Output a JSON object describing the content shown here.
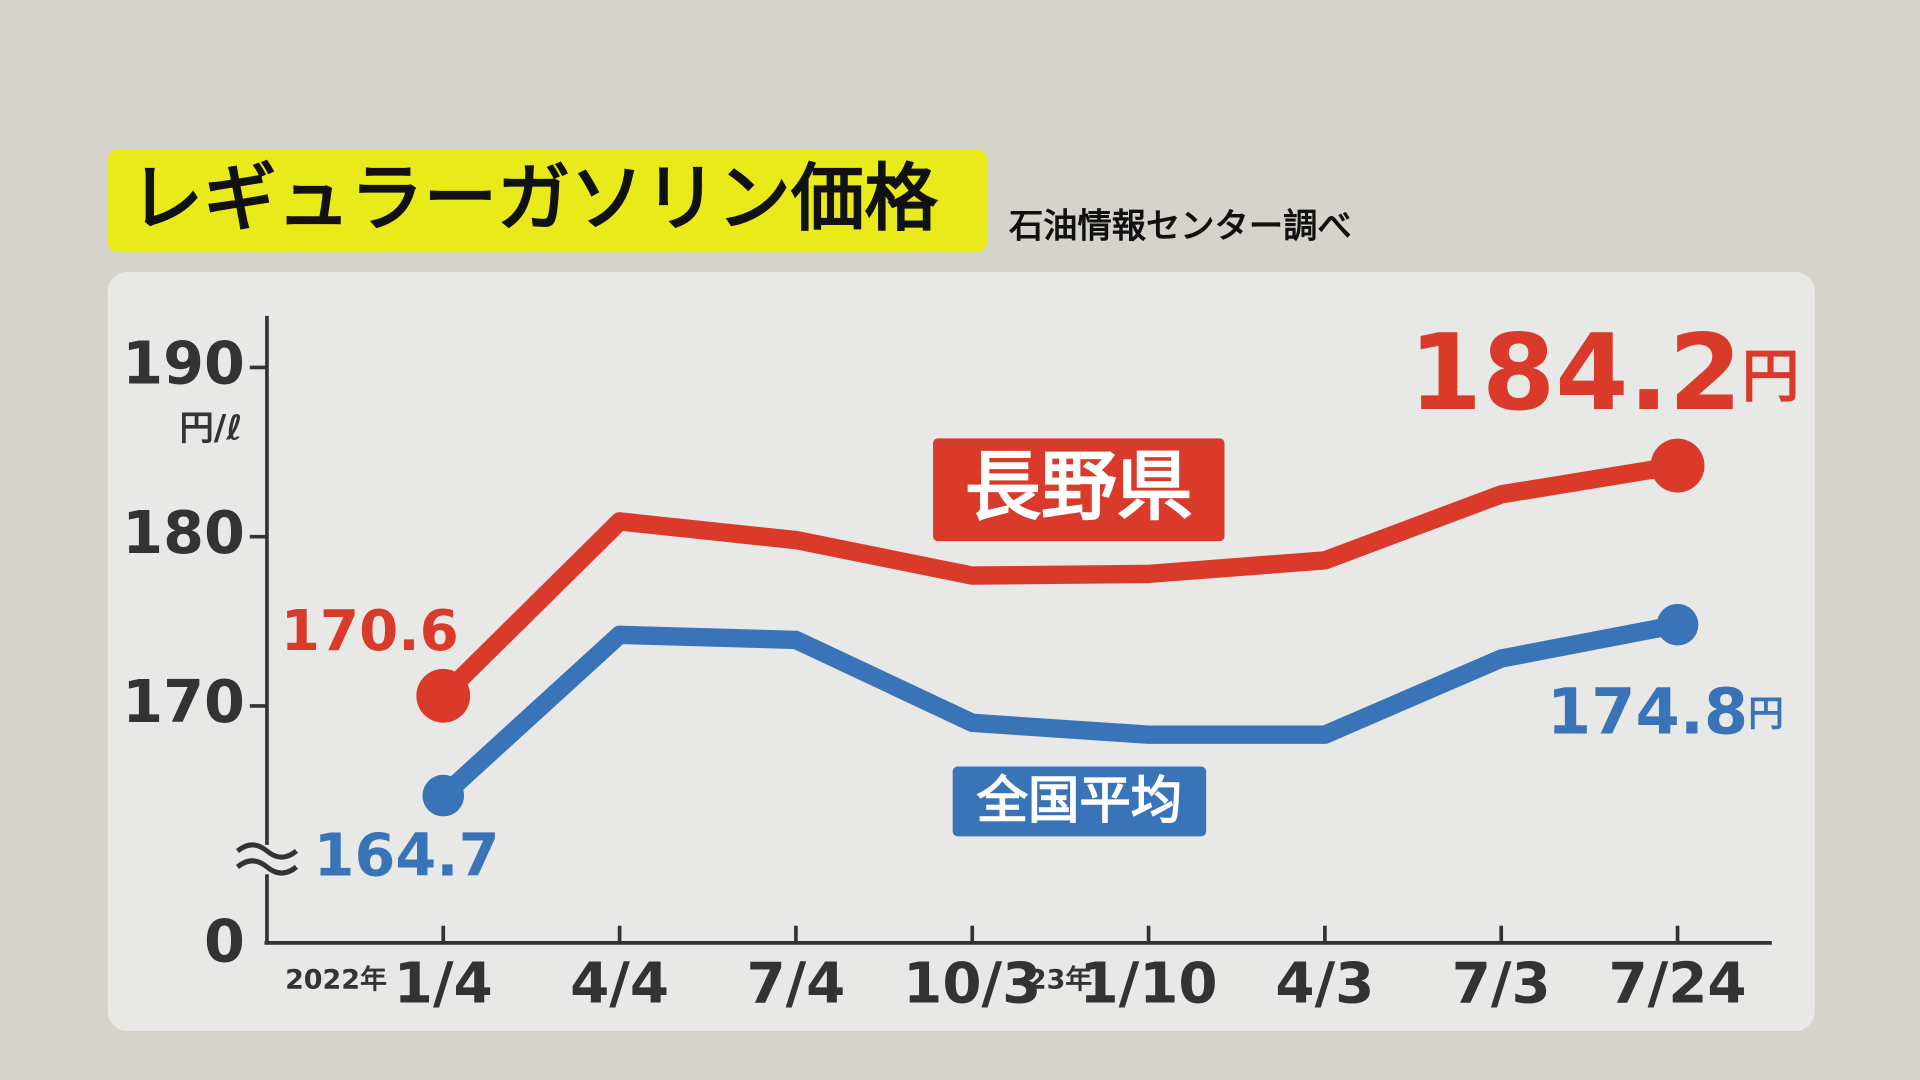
{
  "chart_data": {
    "type": "line",
    "title": "レギュラーガソリン価格",
    "subtitle": "石油情報センター調べ",
    "y_unit_label": "円/ℓ",
    "y_break_label": "0",
    "categories": [
      "1/4",
      "4/4",
      "7/4",
      "10/3",
      "1/10",
      "4/3",
      "7/3",
      "7/24"
    ],
    "year_labels": [
      "2022年",
      null,
      null,
      null,
      "23年",
      null,
      null,
      null
    ],
    "ylim": [
      156,
      193
    ],
    "yticks": [
      170,
      180,
      190
    ],
    "series": [
      {
        "name": "長野県",
        "color": "#d93a2a",
        "values": [
          170.6,
          180.9,
          179.8,
          177.7,
          177.8,
          178.6,
          182.5,
          184.2
        ],
        "value_labels": [
          "170.6",
          null,
          null,
          null,
          null,
          null,
          null,
          "184.2円"
        ]
      },
      {
        "name": "全国平均",
        "color": "#3a74b8",
        "values": [
          164.7,
          174.2,
          173.9,
          169.0,
          168.3,
          168.3,
          172.8,
          174.8
        ],
        "value_labels": [
          "164.7",
          null,
          null,
          null,
          null,
          null,
          null,
          "174.8円"
        ]
      }
    ]
  }
}
